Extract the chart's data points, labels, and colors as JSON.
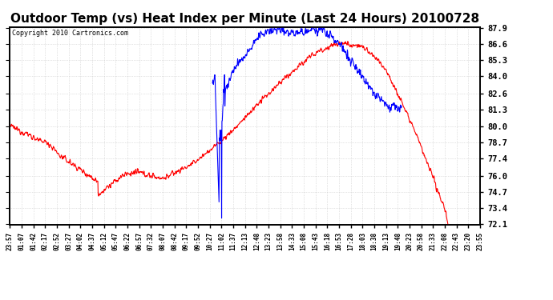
{
  "title": "Outdoor Temp (vs) Heat Index per Minute (Last 24 Hours) 20100728",
  "copyright": "Copyright 2010 Cartronics.com",
  "y_ticks": [
    72.1,
    73.4,
    74.7,
    76.0,
    77.4,
    78.7,
    80.0,
    81.3,
    82.6,
    84.0,
    85.3,
    86.6,
    87.9
  ],
  "y_min": 72.1,
  "y_max": 87.9,
  "background_color": "#ffffff",
  "grid_color": "#c8c8c8",
  "red_line_color": "#ff0000",
  "blue_line_color": "#0000ff",
  "title_fontsize": 11,
  "copyright_fontsize": 6,
  "tick_fontsize": 7.5,
  "x_tick_fontsize": 5.5,
  "x_labels": [
    "23:57",
    "01:07",
    "01:42",
    "02:17",
    "02:52",
    "03:27",
    "04:02",
    "04:37",
    "05:12",
    "05:47",
    "06:22",
    "06:57",
    "07:32",
    "08:07",
    "08:42",
    "09:17",
    "09:52",
    "10:27",
    "11:02",
    "11:37",
    "12:13",
    "12:48",
    "13:23",
    "13:58",
    "14:33",
    "15:08",
    "15:43",
    "16:18",
    "16:53",
    "17:28",
    "18:03",
    "18:38",
    "19:13",
    "19:48",
    "20:23",
    "20:58",
    "21:33",
    "22:08",
    "22:43",
    "23:20",
    "23:55"
  ]
}
